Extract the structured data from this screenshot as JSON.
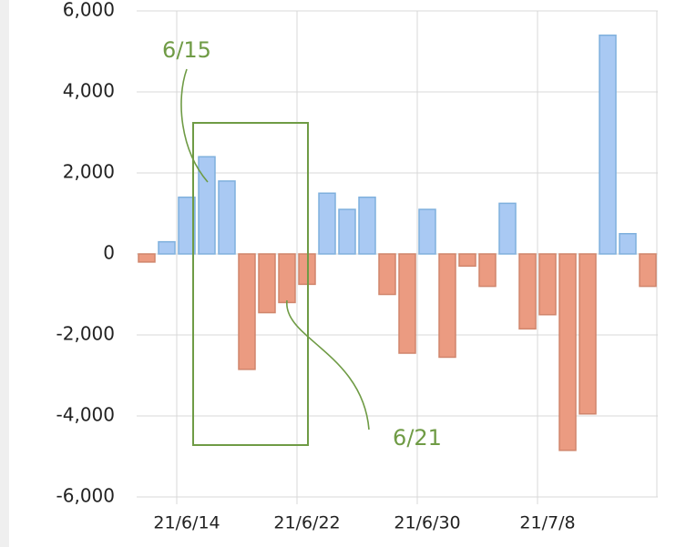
{
  "chart_data": {
    "type": "bar",
    "categories": [
      null,
      null,
      "21/6/14",
      null,
      null,
      null,
      null,
      null,
      "21/6/22",
      null,
      null,
      null,
      null,
      null,
      "21/6/30",
      null,
      null,
      null,
      null,
      null,
      "21/7/8",
      null,
      null,
      null,
      null,
      null
    ],
    "values": [
      -200,
      300,
      1400,
      2400,
      1800,
      -2850,
      -1450,
      -1200,
      -750,
      1500,
      1100,
      1400,
      -1000,
      -2450,
      1100,
      -2550,
      -300,
      -800,
      1250,
      -1850,
      -1500,
      -4850,
      -3950,
      5400,
      500,
      -800
    ],
    "positive_color": "#a9c9f3",
    "negative_color": "#eb9b81",
    "ylim": [
      -6000,
      6000
    ],
    "yticks": [
      {
        "value": -6000,
        "label": "-6,000"
      },
      {
        "value": -4000,
        "label": "-4,000"
      },
      {
        "value": -2000,
        "label": "-2,000"
      },
      0,
      {
        "value": 2000,
        "label": "2,000"
      },
      {
        "value": 4000,
        "label": "4,000"
      },
      {
        "value": 6000,
        "label": "6,000"
      }
    ],
    "grid": true,
    "annotations": [
      {
        "text": "6/15"
      },
      {
        "text": "6/21"
      }
    ]
  }
}
